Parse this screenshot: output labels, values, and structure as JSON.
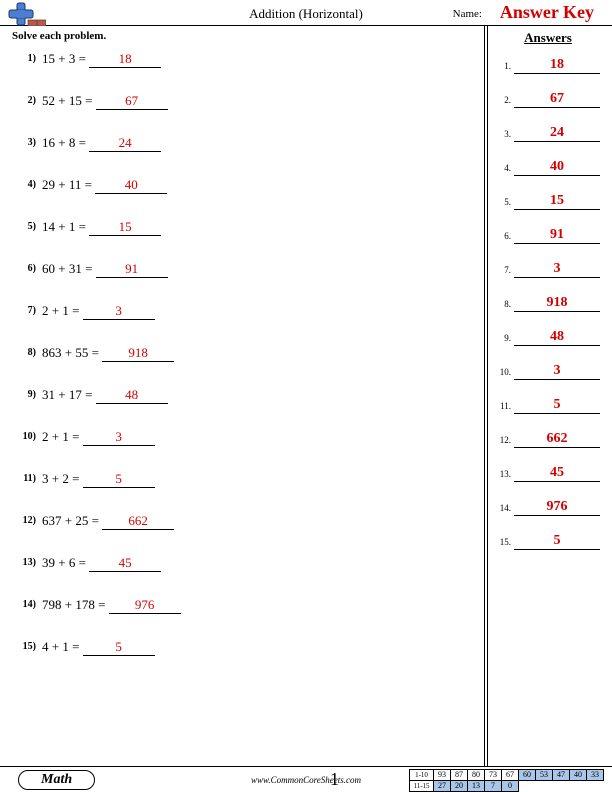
{
  "header": {
    "title": "Addition (Horizontal)",
    "name_label": "Name:",
    "answer_key": "Answer Key"
  },
  "instruction": "Solve each problem.",
  "answers_heading": "Answers",
  "answer_color": "#d30000",
  "problems": [
    {
      "n": "1)",
      "a": 15,
      "b": 3,
      "ans": 18
    },
    {
      "n": "2)",
      "a": 52,
      "b": 15,
      "ans": 67
    },
    {
      "n": "3)",
      "a": 16,
      "b": 8,
      "ans": 24
    },
    {
      "n": "4)",
      "a": 29,
      "b": 11,
      "ans": 40
    },
    {
      "n": "5)",
      "a": 14,
      "b": 1,
      "ans": 15
    },
    {
      "n": "6)",
      "a": 60,
      "b": 31,
      "ans": 91
    },
    {
      "n": "7)",
      "a": 2,
      "b": 1,
      "ans": 3
    },
    {
      "n": "8)",
      "a": 863,
      "b": 55,
      "ans": 918
    },
    {
      "n": "9)",
      "a": 31,
      "b": 17,
      "ans": 48
    },
    {
      "n": "10)",
      "a": 2,
      "b": 1,
      "ans": 3
    },
    {
      "n": "11)",
      "a": 3,
      "b": 2,
      "ans": 5
    },
    {
      "n": "12)",
      "a": 637,
      "b": 25,
      "ans": 662
    },
    {
      "n": "13)",
      "a": 39,
      "b": 6,
      "ans": 45
    },
    {
      "n": "14)",
      "a": 798,
      "b": 178,
      "ans": 976
    },
    {
      "n": "15)",
      "a": 4,
      "b": 1,
      "ans": 5
    }
  ],
  "footer": {
    "subject": "Math",
    "site": "www.CommonCoreSheets.com",
    "page": "1",
    "score_rows": [
      {
        "label": "1-10",
        "cells": [
          {
            "v": "93",
            "shade": false
          },
          {
            "v": "87",
            "shade": false
          },
          {
            "v": "80",
            "shade": false
          },
          {
            "v": "73",
            "shade": false
          },
          {
            "v": "67",
            "shade": false
          },
          {
            "v": "60",
            "shade": true
          },
          {
            "v": "53",
            "shade": true
          },
          {
            "v": "47",
            "shade": true
          },
          {
            "v": "40",
            "shade": true
          },
          {
            "v": "33",
            "shade": true
          }
        ]
      },
      {
        "label": "11-15",
        "cells": [
          {
            "v": "27",
            "shade": true
          },
          {
            "v": "20",
            "shade": true
          },
          {
            "v": "13",
            "shade": true
          },
          {
            "v": "7",
            "shade": true
          },
          {
            "v": "0",
            "shade": true
          }
        ]
      }
    ]
  },
  "logo": {
    "vbar": "#4d7fd1",
    "hbar": "#4d7fd1",
    "brick": "#b55b4d",
    "outline": "#1a3a6b"
  }
}
